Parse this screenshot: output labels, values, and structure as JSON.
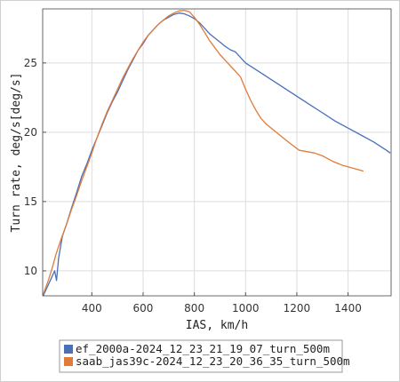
{
  "chart_data": {
    "type": "line",
    "title": "",
    "xlabel": "IAS, km/h",
    "ylabel": "Turn rate, deg/s[deg/s]",
    "xlim": [
      208,
      1568
    ],
    "ylim": [
      8.2,
      28.9
    ],
    "xticks": [
      400,
      600,
      800,
      1000,
      1200,
      1400
    ],
    "yticks": [
      10,
      15,
      20,
      25
    ],
    "grid": true,
    "legend_position": "bottom",
    "series": [
      {
        "name": "ef_2000a-2024_12_23_21_19_07_turn_500m",
        "color": "#4a70b8",
        "x": [
          210,
          240,
          255,
          262,
          270,
          285,
          300,
          320,
          340,
          360,
          380,
          400,
          420,
          440,
          460,
          480,
          500,
          520,
          540,
          560,
          580,
          600,
          620,
          640,
          660,
          680,
          700,
          720,
          740,
          760,
          780,
          800,
          820,
          840,
          860,
          880,
          900,
          920,
          940,
          960,
          1000,
          1050,
          1100,
          1150,
          1200,
          1250,
          1300,
          1350,
          1400,
          1450,
          1500,
          1550,
          1565
        ],
        "y": [
          8.2,
          9.4,
          10.0,
          9.3,
          10.9,
          12.5,
          13.3,
          14.5,
          15.6,
          16.8,
          17.7,
          18.7,
          19.6,
          20.5,
          21.4,
          22.2,
          22.9,
          23.7,
          24.5,
          25.2,
          25.9,
          26.4,
          27.0,
          27.4,
          27.8,
          28.1,
          28.3,
          28.5,
          28.6,
          28.55,
          28.4,
          28.2,
          27.9,
          27.5,
          27.1,
          26.8,
          26.5,
          26.2,
          25.95,
          25.8,
          25.0,
          24.4,
          23.8,
          23.2,
          22.6,
          22.0,
          21.4,
          20.8,
          20.3,
          19.8,
          19.3,
          18.7,
          18.5
        ]
      },
      {
        "name": "saab_jas39c-2024_12_23_20_36_35_turn_500m",
        "color": "#e07b39",
        "x": [
          210,
          230,
          245,
          260,
          280,
          300,
          320,
          340,
          360,
          380,
          400,
          420,
          440,
          460,
          480,
          500,
          520,
          540,
          560,
          580,
          600,
          620,
          640,
          660,
          680,
          700,
          720,
          740,
          760,
          780,
          800,
          820,
          840,
          860,
          880,
          900,
          920,
          940,
          960,
          980,
          1000,
          1020,
          1040,
          1060,
          1080,
          1100,
          1140,
          1180,
          1210,
          1240,
          1270,
          1300,
          1340,
          1380,
          1420,
          1460
        ],
        "y": [
          8.3,
          9.3,
          10.2,
          11.2,
          12.3,
          13.3,
          14.4,
          15.4,
          16.5,
          17.5,
          18.5,
          19.6,
          20.6,
          21.5,
          22.3,
          23.1,
          23.9,
          24.6,
          25.3,
          25.9,
          26.5,
          27.0,
          27.4,
          27.8,
          28.1,
          28.4,
          28.6,
          28.75,
          28.8,
          28.7,
          28.3,
          27.8,
          27.2,
          26.6,
          26.1,
          25.6,
          25.2,
          24.8,
          24.4,
          24.0,
          23.1,
          22.3,
          21.6,
          21.0,
          20.6,
          20.3,
          19.7,
          19.1,
          18.7,
          18.6,
          18.5,
          18.3,
          17.9,
          17.6,
          17.4,
          17.2
        ]
      }
    ]
  }
}
